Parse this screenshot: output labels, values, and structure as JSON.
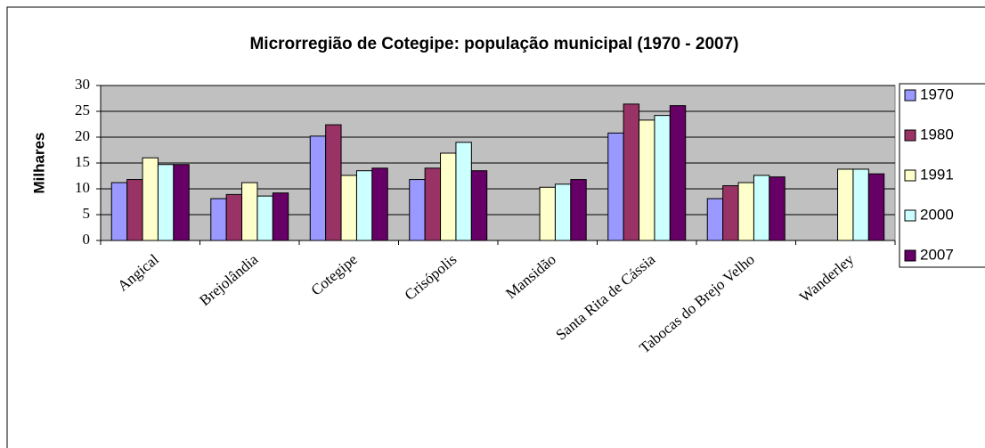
{
  "chart_data": {
    "type": "bar",
    "title": "Microrregião de Cotegipe: população municipal (1970 - 2007)",
    "y_label": "Milhares",
    "categories": [
      "Angical",
      "Brejolândia",
      "Cotegipe",
      "Crisópolis",
      "Mansidão",
      "Santa Rita de Cássia",
      "Tabocas do Brejo Velho",
      "Wanderley"
    ],
    "series": [
      {
        "name": "1970",
        "color": "#9999ff",
        "values": [
          11.2,
          8.1,
          20.2,
          11.8,
          null,
          20.8,
          8.1,
          null
        ]
      },
      {
        "name": "1980",
        "color": "#993366",
        "values": [
          11.8,
          8.9,
          22.4,
          14.0,
          null,
          26.4,
          10.6,
          null
        ]
      },
      {
        "name": "1991",
        "color": "#ffffcc",
        "values": [
          16.0,
          11.2,
          12.6,
          16.9,
          10.3,
          23.3,
          11.2,
          13.8
        ]
      },
      {
        "name": "2000",
        "color": "#ccffff",
        "values": [
          14.7,
          8.6,
          13.5,
          19.0,
          10.9,
          24.2,
          12.6,
          13.8
        ]
      },
      {
        "name": "2007",
        "color": "#660066",
        "values": [
          14.7,
          9.2,
          14.0,
          13.5,
          11.8,
          26.1,
          12.3,
          12.9
        ]
      }
    ],
    "ylim": [
      0,
      30
    ],
    "yticks": [
      0,
      5,
      10,
      15,
      20,
      25,
      30
    ],
    "grid": true,
    "legend": "right"
  }
}
